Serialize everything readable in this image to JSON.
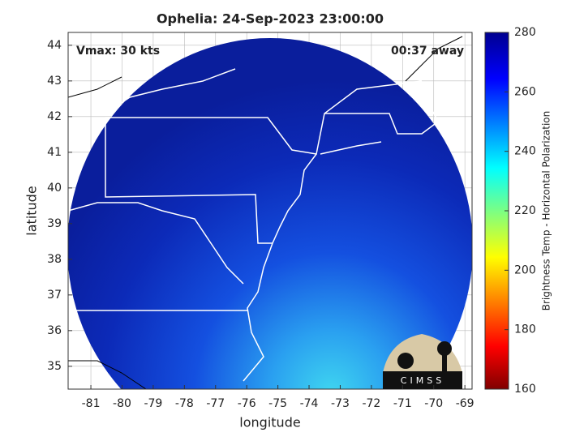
{
  "chart_data": {
    "type": "map",
    "title": "Ophelia: 24-Sep-2023 23:00:00",
    "x_label": "longitude",
    "y_label": "latitude",
    "xlim": [
      -81.73,
      -68.77
    ],
    "ylim": [
      34.36,
      44.36
    ],
    "xticks": [
      -81,
      -80,
      -79,
      -78,
      -77,
      -76,
      -75,
      -74,
      -73,
      -72,
      -71,
      -70,
      -69
    ],
    "yticks": [
      35,
      36,
      37,
      38,
      39,
      40,
      41,
      42,
      43,
      44
    ],
    "grid": true,
    "annotations": [
      "Vmax: 30 kts",
      "00:37 away"
    ],
    "colorbar": {
      "label": "Brightness Temp - Horizontal Polarization",
      "clim": [
        160,
        280
      ],
      "ticks": [
        160,
        180,
        200,
        220,
        240,
        260,
        280
      ]
    },
    "logo": "CIMSS"
  }
}
